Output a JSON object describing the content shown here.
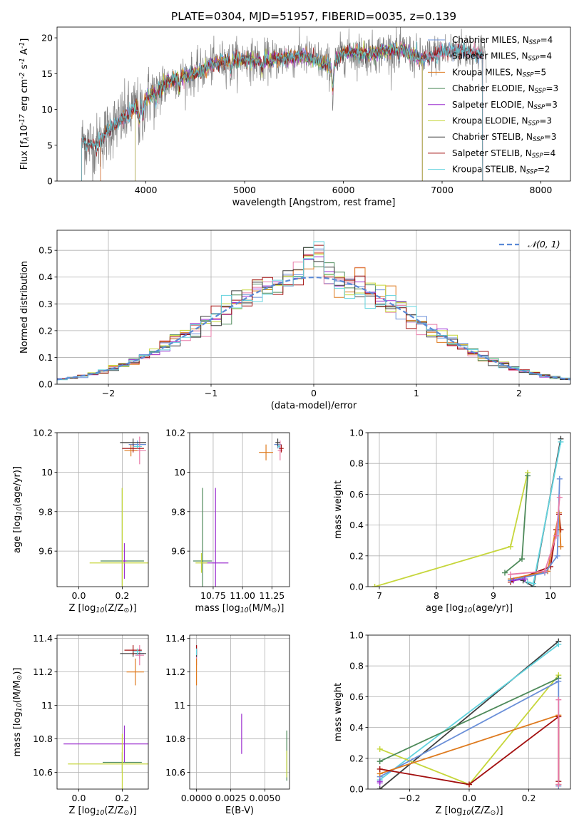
{
  "colors": {
    "Chabrier MILES": "#6a8fd8",
    "Salpeter MILES": "#e87aa8",
    "Kroupa MILES": "#de7a1e",
    "Chabrier ELODIE": "#4e8a5a",
    "Salpeter ELODIE": "#9b2fcf",
    "Kroupa ELODIE": "#c6d63b",
    "Chabrier STELIB": "#3f3f3f",
    "Salpeter STELIB": "#a31010",
    "Kroupa STELIB": "#62d3de",
    "spectrum": "#808080",
    "gaussian": "#5b8ad6"
  },
  "chart_data": [
    {
      "type": "line",
      "title": "PLATE=0304, MJD=51957, FIBERID=0035, z=0.139",
      "xlabel": "wavelength [Angstrom, rest frame]",
      "ylabel": "Flux [f$_\\lambda$10$^{-17}$ erg cm$^{-2}$ s$^{-1}$ A$^{-1}$]",
      "xlim": [
        3100,
        8300
      ],
      "ylim": [
        0,
        21.5
      ],
      "xticks": [
        4000,
        5000,
        6000,
        7000,
        8000
      ],
      "yticks": [
        0,
        5,
        10,
        15,
        20
      ],
      "spectrum_anchors": {
        "x": [
          3350,
          3500,
          3650,
          3800,
          3950,
          4100,
          4300,
          4500,
          4700,
          4860,
          5000,
          5200,
          5400,
          5600,
          5890,
          6000,
          6300,
          6563,
          6800,
          7000,
          7200,
          7400
        ],
        "y": [
          5.5,
          5.0,
          7.5,
          9.0,
          11.0,
          12.5,
          14.5,
          15.0,
          16.5,
          17.0,
          17.0,
          16.8,
          17.2,
          17.5,
          16.0,
          18.0,
          17.8,
          18.5,
          17.0,
          18.0,
          18.3,
          17.8
        ]
      },
      "legend_position": "upper right",
      "series": [
        {
          "name": "Chabrier MILES",
          "nssp": "4"
        },
        {
          "name": "Salpeter MILES",
          "nssp": "4"
        },
        {
          "name": "Kroupa MILES",
          "nssp": "5"
        },
        {
          "name": "Chabrier ELODIE",
          "nssp": "3"
        },
        {
          "name": "Salpeter ELODIE",
          "nssp": "3"
        },
        {
          "name": "Kroupa ELODIE",
          "nssp": "3"
        },
        {
          "name": "Chabrier STELIB",
          "nssp": "3"
        },
        {
          "name": "Salpeter STELIB",
          "nssp": "4"
        },
        {
          "name": "Kroupa STELIB",
          "nssp": "2"
        }
      ]
    },
    {
      "type": "histogram",
      "xlabel": "(data-model)/error",
      "ylabel": "Normed distribution",
      "xlim": [
        -2.5,
        2.5
      ],
      "ylim": [
        0,
        0.575
      ],
      "xticks": [
        -2,
        -1,
        0,
        1,
        2
      ],
      "yticks": [
        0.0,
        0.1,
        0.2,
        0.3,
        0.4,
        0.5
      ],
      "grid": true,
      "bin_width": 0.1,
      "bin_start": -2.5,
      "reference_curve": {
        "name": "$\\mathcal{N}(0,1)$",
        "type": "gaussian",
        "mean": 0,
        "sigma": 1
      },
      "legend_position": "upper right"
    },
    {
      "type": "errorbar",
      "xlabel": "Z [log$_{10}$(Z/Z$_\\odot$)]",
      "ylabel": "age  [log$_{10}$(age/yr)]",
      "xlim": [
        -0.1,
        0.32
      ],
      "ylim": [
        9.42,
        10.2
      ],
      "xticks": [
        0.0,
        0.2
      ],
      "yticks": [
        9.6,
        9.8,
        10.0,
        10.2
      ],
      "grid": true,
      "points": [
        {
          "series": "Chabrier MILES",
          "x": 0.27,
          "y": 10.14,
          "xerr": 0.04,
          "yerr": 0.02
        },
        {
          "series": "Salpeter MILES",
          "x": 0.28,
          "y": 10.11,
          "xerr": 0.03,
          "yerr": 0.07
        },
        {
          "series": "Kroupa MILES",
          "x": 0.24,
          "y": 10.11,
          "xerr": 0.03,
          "yerr": 0.03
        },
        {
          "series": "Chabrier ELODIE",
          "x": 0.2,
          "y": 9.55,
          "xerr": 0.1,
          "yerr": 0.37
        },
        {
          "series": "Salpeter ELODIE",
          "x": 0.21,
          "y": 9.55,
          "xerr": 0.01,
          "yerr": 0.09
        },
        {
          "series": "Kroupa ELODIE",
          "x": 0.2,
          "y": 9.54,
          "xerr": 0.15,
          "yerr": 0.38
        },
        {
          "series": "Chabrier STELIB",
          "x": 0.25,
          "y": 10.15,
          "xerr": 0.06,
          "yerr": 0.02
        },
        {
          "series": "Salpeter STELIB",
          "x": 0.25,
          "y": 10.12,
          "xerr": 0.05,
          "yerr": 0.02
        },
        {
          "series": "Kroupa STELIB",
          "x": 0.27,
          "y": 10.13,
          "xerr": 0.02,
          "yerr": 0.01
        }
      ]
    },
    {
      "type": "errorbar",
      "xlabel": "mass [log$_{10}$(M/M$_\\odot$)]",
      "ylabel": "",
      "xlim": [
        10.55,
        11.4
      ],
      "ylim": [
        9.42,
        10.2
      ],
      "xticks": [
        10.75,
        11.0,
        11.25
      ],
      "yticks": [
        9.6,
        9.8,
        10.0,
        10.2
      ],
      "grid": true,
      "points": [
        {
          "series": "Chabrier MILES",
          "x": 11.3,
          "y": 10.14,
          "xerr": 0.03,
          "yerr": 0.02
        },
        {
          "series": "Salpeter MILES",
          "x": 11.32,
          "y": 10.11,
          "xerr": 0.02,
          "yerr": 0.05
        },
        {
          "series": "Kroupa MILES",
          "x": 11.2,
          "y": 10.1,
          "xerr": 0.06,
          "yerr": 0.04
        },
        {
          "series": "Chabrier ELODIE",
          "x": 10.66,
          "y": 9.55,
          "xerr": 0.08,
          "yerr": 0.37
        },
        {
          "series": "Salpeter ELODIE",
          "x": 10.77,
          "y": 9.54,
          "xerr": 0.11,
          "yerr": 0.38
        },
        {
          "series": "Kroupa ELODIE",
          "x": 10.65,
          "y": 9.54,
          "xerr": 0.05,
          "yerr": 0.05
        },
        {
          "series": "Chabrier STELIB",
          "x": 11.3,
          "y": 10.15,
          "xerr": 0.02,
          "yerr": 0.02
        },
        {
          "series": "Salpeter STELIB",
          "x": 11.33,
          "y": 10.12,
          "xerr": 0.02,
          "yerr": 0.02
        },
        {
          "series": "Kroupa STELIB",
          "x": 11.31,
          "y": 10.13,
          "xerr": 0.01,
          "yerr": 0.01
        }
      ]
    },
    {
      "type": "line",
      "xlabel": "age  [log$_{10}$(age/yr)]",
      "ylabel": "mass weight",
      "xlim": [
        6.8,
        10.35
      ],
      "ylim": [
        0,
        1.0
      ],
      "xticks": [
        7,
        8,
        9,
        10
      ],
      "yticks": [
        0.0,
        0.2,
        0.4,
        0.6,
        0.8,
        1.0
      ],
      "grid": true,
      "series": [
        {
          "name": "Kroupa ELODIE",
          "x": [
            6.92,
            9.3,
            9.6
          ],
          "y": [
            0.0,
            0.26,
            0.74
          ]
        },
        {
          "name": "Chabrier ELODIE",
          "x": [
            9.2,
            9.5,
            9.6
          ],
          "y": [
            0.09,
            0.18,
            0.72
          ]
        },
        {
          "name": "Chabrier STELIB",
          "x": [
            9.52,
            9.7,
            10.18
          ],
          "y": [
            0.04,
            0.0,
            0.96
          ]
        },
        {
          "name": "Kroupa STELIB",
          "x": [
            9.6,
            9.7,
            10.18
          ],
          "y": [
            0.03,
            0.02,
            0.94
          ]
        },
        {
          "name": "Salpeter STELIB",
          "x": [
            9.3,
            10.0,
            10.1,
            10.15,
            10.18
          ],
          "y": [
            0.03,
            0.13,
            0.37,
            0.47,
            0.37
          ]
        },
        {
          "name": "Kroupa MILES",
          "x": [
            9.3,
            9.95,
            10.15,
            10.18
          ],
          "y": [
            0.05,
            0.1,
            0.48,
            0.26
          ]
        },
        {
          "name": "Chabrier MILES",
          "x": [
            9.3,
            9.9,
            10.12,
            10.16
          ],
          "y": [
            0.04,
            0.09,
            0.2,
            0.7
          ]
        },
        {
          "name": "Salpeter MILES",
          "x": [
            9.3,
            9.9,
            10.1,
            10.16
          ],
          "y": [
            0.08,
            0.1,
            0.33,
            0.58
          ]
        },
        {
          "name": "Salpeter ELODIE",
          "x": [
            9.35,
            9.55
          ],
          "y": [
            0.04,
            0.05
          ]
        }
      ]
    },
    {
      "type": "errorbar",
      "xlabel": "Z [log$_{10}$(Z/Z$_\\odot$)]",
      "ylabel": "mass [log$_{10}$(M/M$_\\odot$)]",
      "xlim": [
        -0.1,
        0.32
      ],
      "ylim": [
        10.5,
        11.42
      ],
      "xticks": [
        0.0,
        0.2
      ],
      "yticks": [
        10.6,
        10.8,
        11.0,
        11.2,
        11.4
      ],
      "grid": true,
      "points": [
        {
          "series": "Chabrier MILES",
          "x": 0.28,
          "y": 11.31,
          "xerr": 0.02,
          "yerr": 0.03
        },
        {
          "series": "Salpeter MILES",
          "x": 0.28,
          "y": 11.3,
          "xerr": 0.02,
          "yerr": 0.06
        },
        {
          "series": "Kroupa MILES",
          "x": 0.26,
          "y": 11.2,
          "xerr": 0.04,
          "yerr": 0.08
        },
        {
          "series": "Chabrier ELODIE",
          "x": 0.2,
          "y": 10.66,
          "xerr": 0.09,
          "yerr": 0.06
        },
        {
          "series": "Salpeter ELODIE",
          "x": 0.21,
          "y": 10.77,
          "xerr": 0.28,
          "yerr": 0.11
        },
        {
          "series": "Kroupa ELODIE",
          "x": 0.2,
          "y": 10.65,
          "xerr": 0.25,
          "yerr": 0.18
        },
        {
          "series": "Chabrier STELIB",
          "x": 0.25,
          "y": 11.31,
          "xerr": 0.06,
          "yerr": 0.02
        },
        {
          "series": "Salpeter STELIB",
          "x": 0.25,
          "y": 11.33,
          "xerr": 0.04,
          "yerr": 0.03
        },
        {
          "series": "Kroupa STELIB",
          "x": 0.27,
          "y": 11.32,
          "xerr": 0.02,
          "yerr": 0.02
        }
      ]
    },
    {
      "type": "errorbar",
      "xlabel": "E(B-V)",
      "ylabel": "",
      "xlim": [
        -0.0005,
        0.0068
      ],
      "ylim": [
        10.5,
        11.42
      ],
      "xticks": [
        0.0,
        0.0025,
        0.005
      ],
      "xticklabels": [
        "0.0000",
        "0.0025",
        "0.0050"
      ],
      "yticks": [
        10.6,
        10.8,
        11.0,
        11.2,
        11.4
      ],
      "grid": true,
      "points": [
        {
          "series": "Chabrier MILES",
          "x": 0.0,
          "y": 11.31,
          "xerr": 0,
          "yerr": 0.03
        },
        {
          "series": "Salpeter MILES",
          "x": 0.0,
          "y": 11.3,
          "xerr": 0,
          "yerr": 0.06
        },
        {
          "series": "Kroupa MILES",
          "x": 0.0,
          "y": 11.2,
          "xerr": 0,
          "yerr": 0.08
        },
        {
          "series": "Chabrier ELODIE",
          "x": 0.0066,
          "y": 10.7,
          "xerr": 0,
          "yerr": 0.15
        },
        {
          "series": "Salpeter ELODIE",
          "x": 0.0033,
          "y": 10.83,
          "xerr": 0,
          "yerr": 0.12
        },
        {
          "series": "Kroupa ELODIE",
          "x": 0.0066,
          "y": 10.65,
          "xerr": 0,
          "yerr": 0.08
        },
        {
          "series": "Chabrier STELIB",
          "x": 0.0,
          "y": 11.31,
          "xerr": 0,
          "yerr": 0.02
        },
        {
          "series": "Salpeter STELIB",
          "x": 0.0,
          "y": 11.33,
          "xerr": 0,
          "yerr": 0.03
        },
        {
          "series": "Kroupa STELIB",
          "x": 0.0,
          "y": 11.32,
          "xerr": 0,
          "yerr": 0.02
        }
      ]
    },
    {
      "type": "line",
      "xlabel": "Z [log$_{10}$(Z/Z$_\\odot$)]",
      "ylabel": "mass weight",
      "xlim": [
        -0.34,
        0.34
      ],
      "ylim": [
        0,
        1.0
      ],
      "xticks": [
        -0.2,
        0.0,
        0.2
      ],
      "yticks": [
        0.0,
        0.2,
        0.4,
        0.6,
        0.8,
        1.0
      ],
      "grid": true,
      "series": [
        {
          "name": "Chabrier STELIB",
          "x": [
            -0.3,
            0.3
          ],
          "y": [
            0.0,
            0.96
          ]
        },
        {
          "name": "Kroupa STELIB",
          "x": [
            -0.3,
            0.3
          ],
          "y": [
            0.06,
            0.94
          ]
        },
        {
          "name": "Kroupa ELODIE",
          "x": [
            -0.3,
            0.0,
            0.3
          ],
          "y": [
            0.26,
            0.03,
            0.74
          ]
        },
        {
          "name": "Chabrier ELODIE",
          "x": [
            -0.3,
            0.3
          ],
          "y": [
            0.18,
            0.72
          ]
        },
        {
          "name": "Chabrier MILES",
          "x": [
            -0.3,
            0.3,
            0.3
          ],
          "y": [
            0.08,
            0.7,
            0.02
          ]
        },
        {
          "name": "Kroupa MILES",
          "x": [
            -0.3,
            0.3,
            0.3
          ],
          "y": [
            0.1,
            0.48,
            0.03
          ]
        },
        {
          "name": "Salpeter STELIB",
          "x": [
            -0.3,
            0.0,
            0.3,
            0.3
          ],
          "y": [
            0.13,
            0.03,
            0.47,
            0.05
          ]
        },
        {
          "name": "Salpeter MILES",
          "x": [
            0.3,
            0.3
          ],
          "y": [
            0.58,
            0.03
          ]
        },
        {
          "name": "Salpeter ELODIE",
          "x": [
            -0.3,
            -0.3
          ],
          "y": [
            0.04,
            0.05
          ]
        }
      ]
    }
  ]
}
